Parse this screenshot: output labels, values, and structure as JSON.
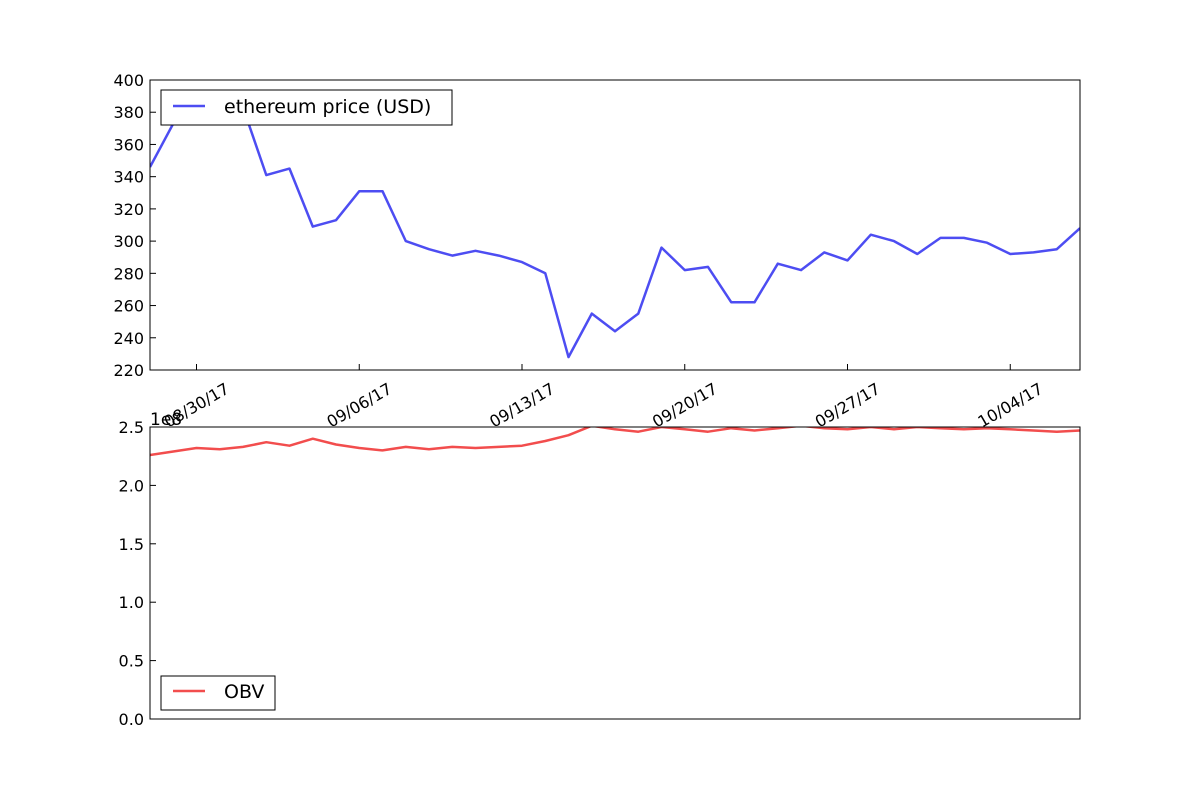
{
  "chart_data": [
    {
      "type": "line",
      "ylim": [
        220,
        400
      ],
      "yticks": [
        220,
        240,
        260,
        280,
        300,
        320,
        340,
        360,
        380,
        400
      ],
      "xtick_labels": [
        "08/30/17",
        "09/06/17",
        "09/13/17",
        "09/20/17",
        "09/27/17",
        "10/04/17"
      ],
      "legend_position": "upper-left",
      "x_dates": [
        "08/28/17",
        "08/29/17",
        "08/30/17",
        "08/31/17",
        "09/01/17",
        "09/02/17",
        "09/03/17",
        "09/04/17",
        "09/05/17",
        "09/06/17",
        "09/07/17",
        "09/08/17",
        "09/09/17",
        "09/10/17",
        "09/11/17",
        "09/12/17",
        "09/13/17",
        "09/14/17",
        "09/15/17",
        "09/16/17",
        "09/17/17",
        "09/18/17",
        "09/19/17",
        "09/20/17",
        "09/21/17",
        "09/22/17",
        "09/23/17",
        "09/24/17",
        "09/25/17",
        "09/26/17",
        "09/27/17",
        "09/28/17",
        "09/29/17",
        "09/30/17",
        "10/01/17",
        "10/02/17",
        "10/03/17",
        "10/04/17",
        "10/05/17",
        "10/06/17",
        "10/07/17"
      ],
      "series": [
        {
          "name": "ethereum price (USD)",
          "color": "#4d4df2",
          "values": [
            346,
            373,
            385,
            388,
            383,
            341,
            345,
            309,
            313,
            331,
            331,
            300,
            295,
            291,
            294,
            291,
            287,
            280,
            228,
            255,
            244,
            255,
            296,
            282,
            284,
            262,
            262,
            286,
            282,
            293,
            288,
            304,
            300,
            292,
            302,
            302,
            299,
            292,
            293,
            295,
            308
          ]
        }
      ]
    },
    {
      "type": "line",
      "ylim": [
        0,
        2.5
      ],
      "yticks": [
        0.0,
        0.5,
        1.0,
        1.5,
        2.0,
        2.5
      ],
      "ytick_labels": [
        "0.0",
        "0.5",
        "1.0",
        "1.5",
        "2.0",
        "2.5"
      ],
      "y_offset_text": "1e8",
      "legend_position": "lower-left",
      "series": [
        {
          "name": "OBV",
          "color": "#f24d4d",
          "values": [
            2.26,
            2.29,
            2.32,
            2.31,
            2.33,
            2.37,
            2.34,
            2.4,
            2.35,
            2.32,
            2.3,
            2.33,
            2.31,
            2.33,
            2.32,
            2.33,
            2.34,
            2.38,
            2.43,
            2.51,
            2.48,
            2.46,
            2.5,
            2.48,
            2.46,
            2.49,
            2.47,
            2.49,
            2.51,
            2.49,
            2.48,
            2.5,
            2.48,
            2.5,
            2.49,
            2.48,
            2.49,
            2.48,
            2.47,
            2.46,
            2.47
          ]
        }
      ]
    }
  ]
}
